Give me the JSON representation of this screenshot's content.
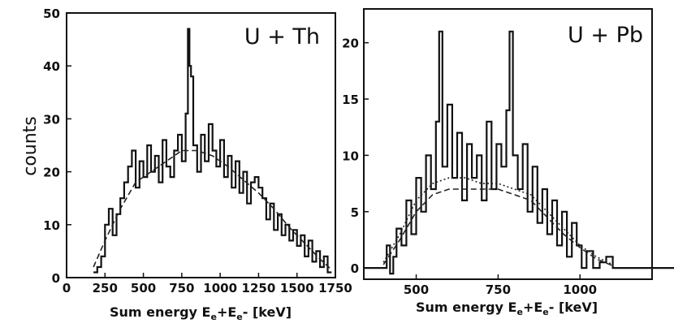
{
  "chart_data": [
    {
      "type": "line",
      "title": "U + Th",
      "xlabel": "Sum energy E",
      "xlabel_sub1": "e",
      "xlabel_mid": "+E",
      "xlabel_sub2": "e",
      "xlabel_tail": "- [keV]",
      "ylabel": "counts",
      "xlim": [
        0,
        1750
      ],
      "ylim": [
        0,
        50
      ],
      "xticks": [
        "0",
        "250",
        "500",
        "750",
        "1000",
        "1250",
        "1500",
        "1750"
      ],
      "yticks": [
        "0",
        "10",
        "20",
        "30",
        "40",
        "50"
      ],
      "grid": false,
      "series": [
        {
          "style": "histogram",
          "x": [
            175,
            200,
            225,
            250,
            275,
            300,
            325,
            350,
            375,
            400,
            425,
            450,
            475,
            500,
            525,
            550,
            575,
            600,
            625,
            650,
            675,
            700,
            725,
            750,
            775,
            790,
            800,
            810,
            825,
            850,
            875,
            900,
            925,
            950,
            975,
            1000,
            1025,
            1050,
            1075,
            1100,
            1125,
            1150,
            1175,
            1200,
            1225,
            1250,
            1275,
            1300,
            1325,
            1350,
            1375,
            1400,
            1425,
            1450,
            1475,
            1500,
            1525,
            1550,
            1575,
            1600,
            1625,
            1650,
            1675,
            1700
          ],
          "values": [
            1,
            2,
            4,
            10,
            13,
            8,
            12,
            15,
            18,
            21,
            24,
            17,
            22,
            19,
            25,
            20,
            23,
            18,
            26,
            21,
            19,
            24,
            27,
            22,
            31,
            47,
            40,
            38,
            25,
            20,
            27,
            22,
            29,
            24,
            21,
            26,
            19,
            23,
            17,
            22,
            16,
            20,
            14,
            18,
            19,
            17,
            15,
            11,
            14,
            9,
            12,
            8,
            10,
            7,
            9,
            6,
            8,
            4,
            7,
            3,
            5,
            2,
            4,
            1
          ]
        },
        {
          "style": "dashed-fit",
          "x": [
            175,
            250,
            350,
            450,
            550,
            650,
            750,
            850,
            950,
            1050,
            1150,
            1250,
            1350,
            1450,
            1550,
            1650,
            1725
          ],
          "values": [
            2,
            7,
            13,
            18,
            20,
            22,
            24,
            24,
            23,
            21,
            18.5,
            16,
            13,
            9.5,
            6.5,
            3.5,
            1.5
          ]
        }
      ]
    },
    {
      "type": "line",
      "title": "U + Pb",
      "xlabel": "Sum energy E",
      "xlabel_sub1": "e",
      "xlabel_mid": "+E",
      "xlabel_sub2": "e",
      "xlabel_tail": "- [keV]",
      "xlim": [
        340,
        1220
      ],
      "ylim": [
        -1,
        23
      ],
      "xticks": [
        "500",
        "750",
        "1000"
      ],
      "yticks": [
        "0",
        "5",
        "10",
        "15",
        "20"
      ],
      "grid": false,
      "series": [
        {
          "style": "histogram",
          "x": [
            340,
            380,
            410,
            420,
            430,
            440,
            455,
            470,
            485,
            500,
            515,
            530,
            545,
            560,
            570,
            580,
            595,
            610,
            625,
            640,
            655,
            670,
            685,
            700,
            715,
            730,
            745,
            760,
            775,
            785,
            795,
            810,
            825,
            840,
            855,
            870,
            885,
            900,
            915,
            930,
            945,
            960,
            975,
            990,
            1005,
            1020,
            1040,
            1060,
            1080,
            1100,
            1120,
            1220
          ],
          "values": [
            0,
            0,
            2,
            -0.5,
            1,
            3.5,
            2,
            6,
            3,
            8,
            5,
            10,
            7,
            13,
            21,
            9,
            14.5,
            8,
            12,
            6,
            11,
            8,
            10,
            6,
            13,
            7,
            11,
            9,
            14,
            21,
            10,
            7,
            11,
            5,
            9,
            4,
            7,
            3,
            6,
            2,
            5,
            1,
            4,
            2,
            0,
            1.5,
            0,
            0.5,
            1,
            0,
            0,
            0
          ]
        },
        {
          "style": "dotted-fit",
          "x": [
            400,
            450,
            500,
            550,
            600,
            650,
            700,
            750,
            800,
            850,
            900,
            950,
            1000,
            1050,
            1100
          ],
          "values": [
            0.5,
            3,
            6,
            7.5,
            8,
            8,
            7.5,
            7.5,
            7,
            6.5,
            5,
            3.5,
            2,
            1,
            0.3
          ]
        },
        {
          "style": "dashed-fit",
          "x": [
            400,
            450,
            500,
            550,
            600,
            650,
            700,
            750,
            800,
            850,
            900,
            950,
            1000,
            1050,
            1100
          ],
          "values": [
            0.3,
            2.5,
            5,
            6.5,
            7,
            7,
            7,
            7,
            6.5,
            6,
            4.5,
            3,
            1.8,
            0.8,
            0.2
          ]
        }
      ]
    }
  ]
}
